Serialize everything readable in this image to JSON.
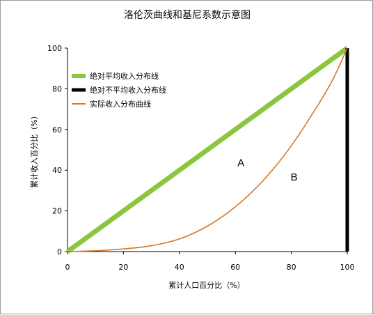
{
  "chart_data": {
    "type": "line",
    "title": "洛伦茨曲线和基尼系数示意图",
    "xlabel": "累计人口百分比（%）",
    "ylabel": "累计收入百分比（%）",
    "xlim": [
      0,
      100
    ],
    "ylim": [
      0,
      100
    ],
    "x_ticks": [
      0,
      20,
      40,
      60,
      80,
      100
    ],
    "y_ticks": [
      0,
      20,
      40,
      60,
      80,
      100
    ],
    "grid": false,
    "legend_position": "top-left",
    "series": [
      {
        "name": "绝对平均收入分布线",
        "color": "#8cc63f",
        "x": [
          0,
          100
        ],
        "y": [
          0,
          100
        ]
      },
      {
        "name": "绝对不平均收入分布线",
        "color": "#000000",
        "x": [
          100,
          100
        ],
        "y": [
          0,
          100
        ]
      },
      {
        "name": "实际收入分布曲线",
        "color": "#d2782a",
        "x": [
          0,
          10,
          20,
          30,
          40,
          50,
          60,
          70,
          80,
          90,
          95,
          100
        ],
        "y": [
          0,
          0.4,
          1.3,
          2.9,
          6.2,
          12.5,
          22,
          35,
          52,
          73,
          85,
          100
        ]
      }
    ],
    "annotations": [
      {
        "text": "A",
        "x": 62,
        "y": 42
      },
      {
        "text": "B",
        "x": 81,
        "y": 35
      }
    ]
  }
}
